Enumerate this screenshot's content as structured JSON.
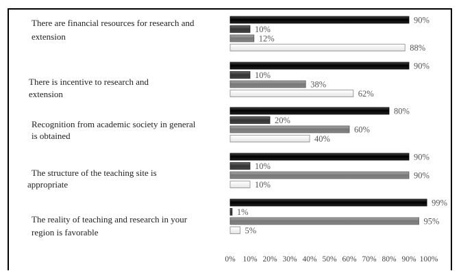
{
  "chart_data": {
    "type": "bar",
    "orientation": "horizontal",
    "categories": [
      "There are financial resources for research and extension",
      "There is incentive to research and extension",
      "Recognition from academic society in general is obtained",
      "The structure of the teaching site is appropriate",
      "The reality of teaching and research in your region is favorable"
    ],
    "category_lines": [
      [
        "There are financial resources for research and",
        "extension"
      ],
      [
        "There is incentive to research and",
        "extension"
      ],
      [
        "Recognition from academic society in general",
        "is obtained"
      ],
      [
        "The structure of the teaching site is",
        "appropriate"
      ],
      [
        "The reality of teaching and research in your",
        "region is favorable"
      ]
    ],
    "series": [
      {
        "values": [
          90,
          90,
          80,
          90,
          99
        ],
        "color": "#111111"
      },
      {
        "values": [
          10,
          10,
          20,
          10,
          1
        ],
        "color": "#3a3a3a"
      },
      {
        "values": [
          12,
          38,
          60,
          90,
          95
        ],
        "color": "#7a7a7a"
      },
      {
        "values": [
          88,
          62,
          40,
          10,
          5
        ],
        "color": "#f4f4f4"
      }
    ],
    "value_suffix": "%",
    "xlim": [
      0,
      100
    ],
    "xticks": [
      "0%",
      "10%",
      "20%",
      "30%",
      "40%",
      "50%",
      "60%",
      "70%",
      "80%",
      "90%",
      "100%"
    ],
    "grid": false,
    "legend": "none"
  }
}
